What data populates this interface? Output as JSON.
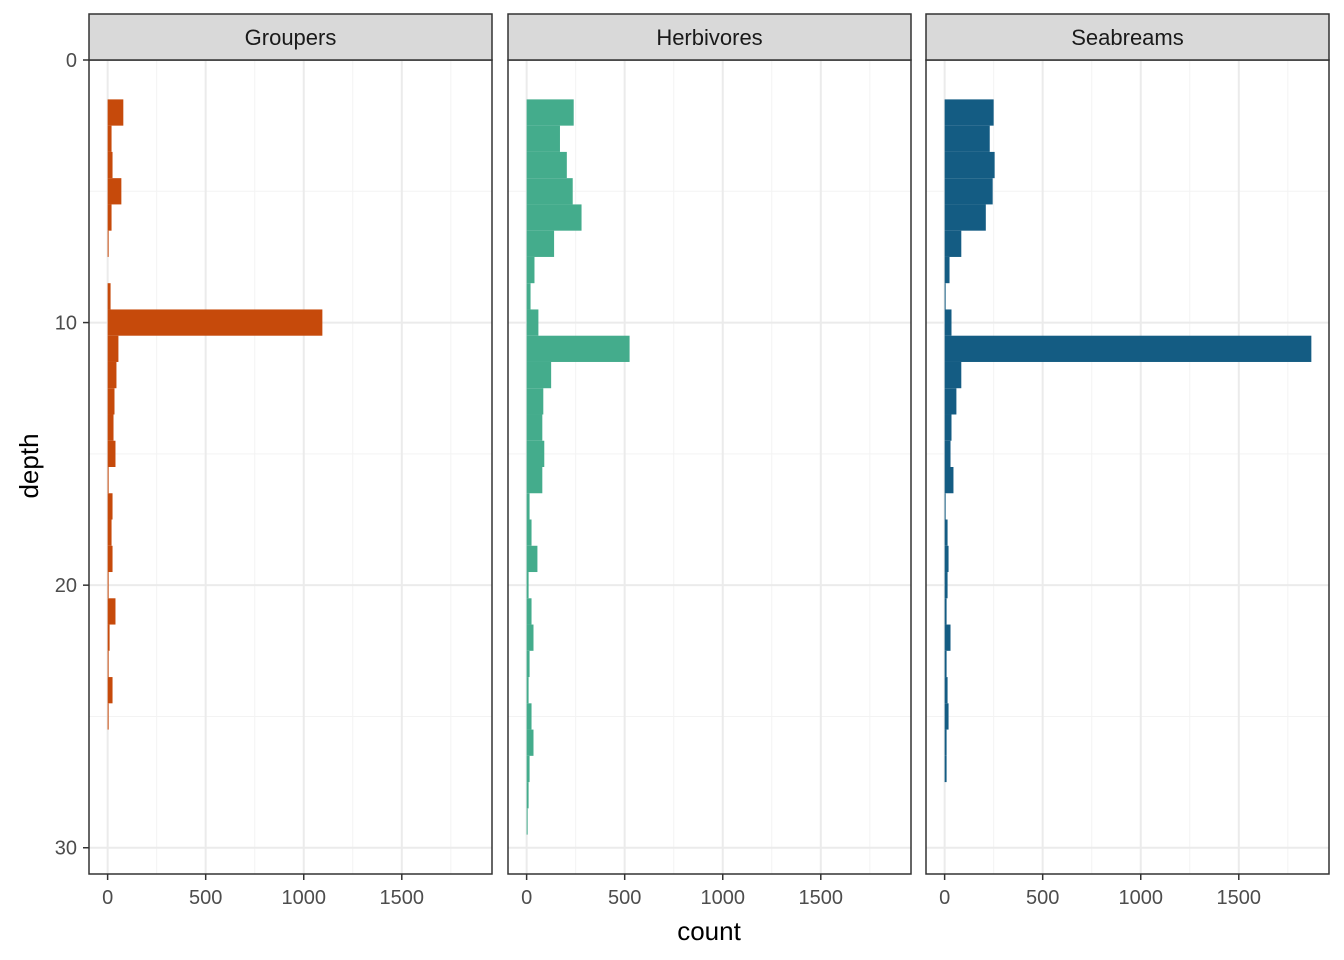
{
  "chart_data": {
    "type": "bar",
    "orientation": "horizontal",
    "xlabel": "count",
    "ylabel": "depth",
    "xlim": [
      -95,
      1960
    ],
    "ylim": [
      0,
      31
    ],
    "x_ticks": [
      0,
      500,
      1000,
      1500
    ],
    "y_ticks": [
      0,
      10,
      20,
      30
    ],
    "y_reversed": true,
    "grid": true,
    "depth_bins": [
      2,
      3,
      4,
      5,
      6,
      7,
      8,
      9,
      10,
      11,
      12,
      13,
      14,
      15,
      16,
      17,
      18,
      19,
      20,
      21,
      22,
      23,
      24,
      25,
      26,
      27,
      28,
      29
    ],
    "bin_width": 1,
    "panels": [
      {
        "name": "Groupers",
        "color": "#C64A0B",
        "values": [
          80,
          20,
          25,
          70,
          20,
          5,
          0,
          15,
          1095,
          55,
          45,
          35,
          30,
          40,
          5,
          25,
          20,
          25,
          5,
          40,
          10,
          5,
          25,
          5,
          0,
          0,
          0,
          0
        ]
      },
      {
        "name": "Herbivores",
        "color": "#44AC8C",
        "values": [
          240,
          170,
          205,
          235,
          280,
          140,
          40,
          20,
          60,
          525,
          125,
          85,
          80,
          90,
          80,
          15,
          25,
          55,
          10,
          25,
          35,
          15,
          10,
          25,
          35,
          15,
          10,
          5
        ]
      },
      {
        "name": "Seabreams",
        "color": "#145C83",
        "values": [
          250,
          230,
          255,
          245,
          210,
          85,
          25,
          5,
          35,
          1870,
          85,
          60,
          35,
          30,
          45,
          5,
          15,
          20,
          15,
          10,
          30,
          10,
          15,
          20,
          10,
          10,
          0,
          0
        ]
      }
    ]
  }
}
